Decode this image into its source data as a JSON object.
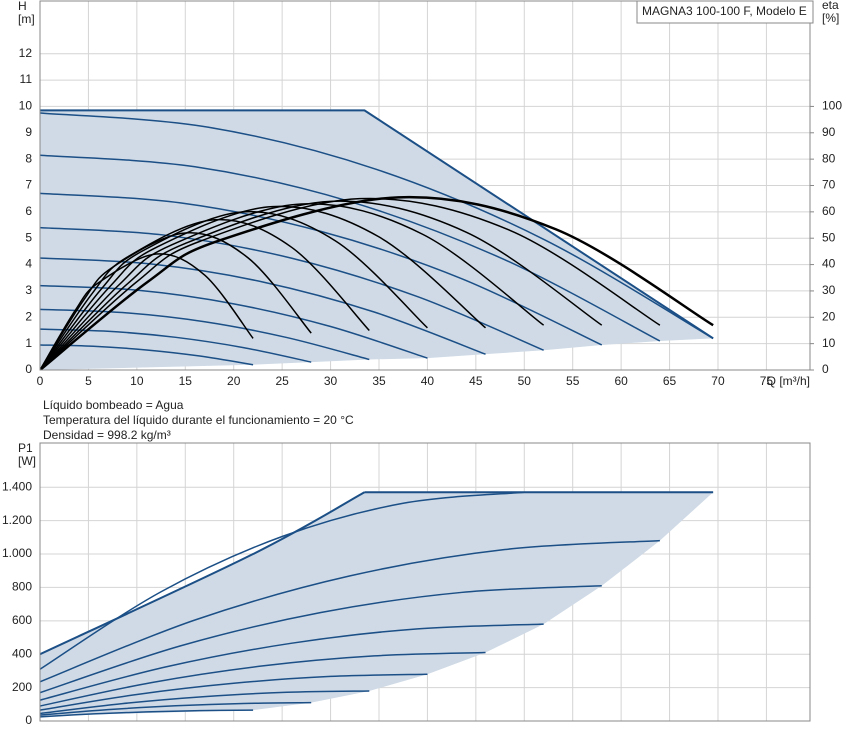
{
  "chart_data": [
    {
      "type": "line",
      "title": "MAGNA3 100-100 F, Modelo E",
      "y_label": "H",
      "y_unit": "[m]",
      "y2_label": "eta",
      "y2_unit": "[%]",
      "x_label": "Q [m³/h]",
      "xlim": [
        0,
        79.5
      ],
      "xticks": [
        0,
        5,
        10,
        15,
        20,
        25,
        30,
        35,
        40,
        45,
        50,
        55,
        60,
        65,
        70,
        75
      ],
      "ylim": [
        0,
        14
      ],
      "yticks": [
        0,
        1,
        2,
        3,
        4,
        5,
        6,
        7,
        8,
        9,
        10,
        11,
        12
      ],
      "y2lim": [
        0,
        140
      ],
      "y2ticks": [
        0,
        10,
        20,
        30,
        40,
        50,
        60,
        70,
        80,
        90,
        100
      ],
      "grid": true,
      "smooth": true,
      "series": [
        {
          "style": "area",
          "color": "#cfdae6",
          "x": [
            0,
            33.5,
            69.5,
            64,
            58,
            52,
            46,
            40,
            34,
            28,
            22,
            0
          ],
          "values": [
            9.85,
            9.85,
            1.2,
            1.1,
            0.95,
            0.75,
            0.6,
            0.45,
            0.4,
            0.3,
            0.2,
            0
          ]
        },
        {
          "style": "line",
          "color": "#1b4f86",
          "width": 2,
          "x": [
            0,
            33.5,
            69.5
          ],
          "values": [
            9.85,
            9.85,
            1.2
          ]
        },
        {
          "style": "curve",
          "color": "#1b4f86",
          "width": 1.5,
          "x": [
            0,
            17.4,
            34.75,
            52.1,
            69.5
          ],
          "values": [
            9.75,
            9.21,
            7.61,
            4.94,
            1.2
          ]
        },
        {
          "style": "curve",
          "color": "#1b4f86",
          "width": 1.5,
          "x": [
            0,
            16,
            32,
            48,
            64
          ],
          "values": [
            8.15,
            7.71,
            6.39,
            4.18,
            1.1
          ]
        },
        {
          "style": "curve",
          "color": "#1b4f86",
          "width": 1.5,
          "x": [
            0,
            14.5,
            29,
            43.5,
            58
          ],
          "values": [
            6.7,
            6.34,
            5.26,
            3.47,
            0.95
          ]
        },
        {
          "style": "curve",
          "color": "#1b4f86",
          "width": 1.5,
          "x": [
            0,
            13,
            26,
            39,
            52
          ],
          "values": [
            5.4,
            5.11,
            4.24,
            2.78,
            0.75
          ]
        },
        {
          "style": "curve",
          "color": "#1b4f86",
          "width": 1.5,
          "x": [
            0,
            11.5,
            23,
            34.5,
            46
          ],
          "values": [
            4.25,
            4.02,
            3.34,
            2.2,
            0.6
          ]
        },
        {
          "style": "curve",
          "color": "#1b4f86",
          "width": 1.5,
          "x": [
            0,
            10,
            20,
            30,
            40
          ],
          "values": [
            3.2,
            3.03,
            2.51,
            1.65,
            0.45
          ]
        },
        {
          "style": "curve",
          "color": "#1b4f86",
          "width": 1.5,
          "x": [
            0,
            8.5,
            17,
            25.5,
            34
          ],
          "values": [
            2.3,
            2.18,
            1.83,
            1.23,
            0.4
          ]
        },
        {
          "style": "curve",
          "color": "#1b4f86",
          "width": 1.5,
          "x": [
            0,
            7,
            14,
            21,
            28
          ],
          "values": [
            1.55,
            1.47,
            1.24,
            0.85,
            0.3
          ]
        },
        {
          "style": "curve",
          "color": "#1b4f86",
          "width": 1.5,
          "x": [
            0,
            5.5,
            11,
            16.5,
            22
          ],
          "values": [
            0.95,
            0.9,
            0.76,
            0.53,
            0.2
          ]
        },
        {
          "style": "curve",
          "axis": "y2",
          "color": "#000000",
          "width": 1.5,
          "x": [
            0,
            3.6,
            6,
            12,
            17,
            22
          ],
          "values": [
            0,
            22.4,
            33,
            44,
            36,
            12
          ]
        },
        {
          "style": "curve",
          "axis": "y2",
          "color": "#000000",
          "width": 1.5,
          "x": [
            0,
            4.5,
            7.5,
            15,
            21.5,
            28
          ],
          "values": [
            0,
            26.5,
            39,
            52,
            42.5,
            14
          ]
        },
        {
          "style": "curve",
          "axis": "y2",
          "color": "#000000",
          "width": 1.5,
          "x": [
            0,
            5.4,
            9,
            18,
            26,
            34
          ],
          "values": [
            0,
            29.1,
            42.8,
            57,
            46.5,
            15
          ]
        },
        {
          "style": "curve",
          "axis": "y2",
          "color": "#000000",
          "width": 1.5,
          "x": [
            0,
            6.3,
            10.5,
            21,
            30.5,
            40
          ],
          "values": [
            0,
            30.6,
            45,
            60,
            49,
            16
          ]
        },
        {
          "style": "curve",
          "axis": "y2",
          "color": "#000000",
          "width": 1.5,
          "x": [
            0,
            7.2,
            12,
            24,
            35,
            46
          ],
          "values": [
            0,
            31.6,
            46.5,
            62,
            50.5,
            16
          ]
        },
        {
          "style": "curve",
          "axis": "y2",
          "color": "#000000",
          "width": 1.5,
          "x": [
            0,
            8.1,
            13.5,
            27,
            39.5,
            52
          ],
          "values": [
            0,
            32.1,
            47.3,
            63,
            51.5,
            17
          ]
        },
        {
          "style": "curve",
          "axis": "y2",
          "color": "#000000",
          "width": 1.5,
          "x": [
            0,
            9,
            15,
            30,
            44,
            58
          ],
          "values": [
            0,
            32.6,
            48,
            64,
            52.3,
            17
          ]
        },
        {
          "style": "curve",
          "axis": "y2",
          "color": "#000000",
          "width": 1.5,
          "x": [
            0,
            9.9,
            16.5,
            33,
            48.5,
            64
          ],
          "values": [
            0,
            33.2,
            48.8,
            65,
            53,
            17
          ]
        },
        {
          "style": "curve",
          "axis": "y2",
          "color": "#000000",
          "width": 2.5,
          "x": [
            0,
            11.1,
            18.5,
            37,
            53.25,
            69.5
          ],
          "values": [
            0,
            33.4,
            49.1,
            65.5,
            53.4,
            17
          ]
        }
      ]
    },
    {
      "type": "line",
      "y_label": "P1",
      "y_unit": "[W]",
      "annotations": [
        "Líquido bombeado = Agua",
        "Temperatura del líquido durante el funcionamiento = 20 °C",
        "Densidad = 998.2 kg/m³"
      ],
      "xlim": [
        0,
        79.5
      ],
      "xticks": [
        0,
        5,
        10,
        15,
        20,
        25,
        30,
        35,
        40,
        45,
        50,
        55,
        60,
        65,
        70,
        75
      ],
      "x_tick_labels": false,
      "ylim": [
        0,
        1665
      ],
      "yticks": [
        0,
        200,
        400,
        600,
        800,
        {
          "value": 1000,
          "label": "1.000"
        },
        {
          "value": 1200,
          "label": "1.200"
        },
        {
          "value": 1400,
          "label": "1.400"
        }
      ],
      "grid": true,
      "smooth": true,
      "series": [
        {
          "style": "area",
          "color": "#cfdae6",
          "x": [
            0,
            22,
            33.5,
            69.5,
            64,
            58,
            52,
            46,
            40,
            34,
            28,
            22,
            0
          ],
          "values": [
            400,
            1000,
            1370,
            1370,
            1080,
            810,
            580,
            410,
            280,
            180,
            110,
            65,
            30
          ]
        },
        {
          "style": "curve",
          "color": "#1b4f86",
          "width": 2,
          "x": [
            0,
            22,
            33.5
          ],
          "values": [
            400,
            1000,
            1370
          ]
        },
        {
          "style": "line",
          "color": "#1b4f86",
          "width": 2,
          "x": [
            33.5,
            69.5
          ],
          "values": [
            1370,
            1370
          ]
        },
        {
          "style": "curve",
          "color": "#1b4f86",
          "width": 1.5,
          "x": [
            0,
            12.5,
            25,
            37.5,
            50
          ],
          "values": [
            310,
            774,
            1105,
            1304,
            1370
          ]
        },
        {
          "style": "curve",
          "color": "#1b4f86",
          "width": 1.5,
          "x": [
            0,
            16,
            32,
            48,
            64
          ],
          "values": [
            235,
            605,
            869,
            1027,
            1080
          ]
        },
        {
          "style": "curve",
          "color": "#1b4f86",
          "width": 1.5,
          "x": [
            0,
            14.5,
            29,
            43.5,
            58
          ],
          "values": [
            170,
            450,
            650,
            770,
            810
          ]
        },
        {
          "style": "curve",
          "color": "#1b4f86",
          "width": 1.5,
          "x": [
            0,
            13,
            26,
            39,
            52
          ],
          "values": [
            125,
            324,
            466,
            552,
            580
          ]
        },
        {
          "style": "curve",
          "color": "#1b4f86",
          "width": 1.5,
          "x": [
            0,
            11.5,
            23,
            34.5,
            46
          ],
          "values": [
            90,
            230,
            330,
            390,
            410
          ]
        },
        {
          "style": "curve",
          "color": "#1b4f86",
          "width": 1.5,
          "x": [
            0,
            10,
            20,
            30,
            40
          ],
          "values": [
            65,
            159,
            226,
            267,
            280
          ]
        },
        {
          "style": "curve",
          "color": "#1b4f86",
          "width": 1.5,
          "x": [
            0,
            8.5,
            17,
            25.5,
            34
          ],
          "values": [
            45,
            104,
            146,
            172,
            180
          ]
        },
        {
          "style": "curve",
          "color": "#1b4f86",
          "width": 1.5,
          "x": [
            0,
            7,
            14,
            21,
            28
          ],
          "values": [
            35,
            68,
            91,
            105,
            110
          ]
        },
        {
          "style": "curve",
          "color": "#1b4f86",
          "width": 1.5,
          "x": [
            0,
            5.5,
            11,
            16.5,
            22
          ],
          "values": [
            25,
            42.5,
            55,
            62.5,
            65
          ]
        }
      ]
    }
  ]
}
